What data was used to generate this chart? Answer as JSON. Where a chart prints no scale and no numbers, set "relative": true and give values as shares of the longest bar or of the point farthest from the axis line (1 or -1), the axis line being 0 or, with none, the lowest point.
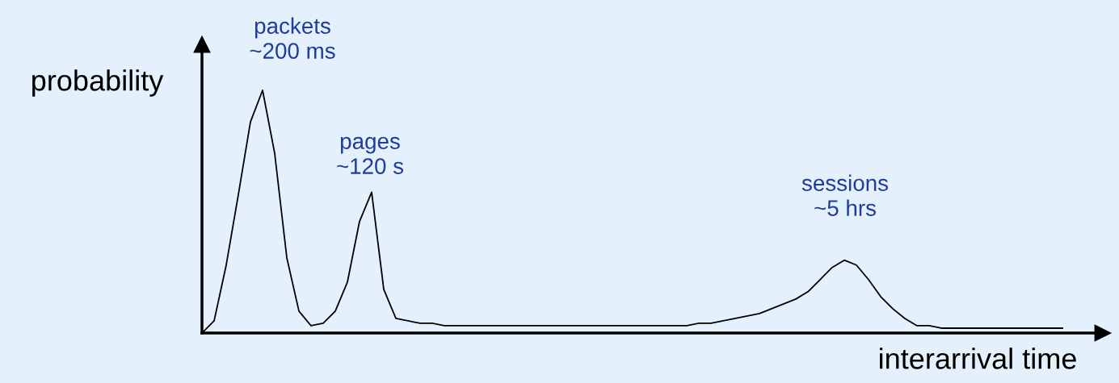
{
  "chart_data": {
    "type": "line",
    "relative": true,
    "xlabel": "interarrival time",
    "ylabel": "probability",
    "annotations": [
      "packets\n~200 ms",
      "pages\n~120 s",
      "sessions\n~5 hrs"
    ],
    "categories": [
      null,
      null,
      null,
      null,
      null,
      null,
      null,
      null,
      null,
      null,
      null,
      null,
      null,
      null,
      null,
      null,
      null,
      null,
      null,
      null,
      null,
      null,
      null,
      null,
      null,
      null,
      null,
      null,
      null,
      null,
      null,
      null,
      null,
      null,
      null,
      null,
      null,
      null,
      null,
      null,
      null,
      null,
      null,
      null,
      null,
      null,
      null,
      null,
      null,
      null,
      null,
      null,
      null,
      null,
      null,
      null,
      null,
      null,
      null,
      null,
      null,
      null,
      null,
      null,
      null,
      null,
      null,
      null,
      null,
      null,
      null,
      null
    ],
    "series": [
      {
        "color": "#000000",
        "values": [
          0,
          0.05,
          0.28,
          0.57,
          0.87,
          1,
          0.74,
          0.31,
          0.09,
          0.03,
          0.04,
          0.09,
          0.21,
          0.46,
          0.58,
          0.18,
          0.06,
          0.05,
          0.04,
          0.04,
          0.03,
          0.03,
          0.03,
          0.03,
          0.03,
          0.03,
          0.03,
          0.03,
          0.03,
          0.03,
          0.03,
          0.03,
          0.03,
          0.03,
          0.03,
          0.03,
          0.03,
          0.03,
          0.03,
          0.03,
          0.03,
          0.04,
          0.04,
          0.05,
          0.06,
          0.07,
          0.08,
          0.1,
          0.12,
          0.14,
          0.17,
          0.22,
          0.27,
          0.3,
          0.28,
          0.22,
          0.15,
          0.1,
          0.06,
          0.03,
          0.03,
          0.02,
          0.02,
          0.02,
          0.02,
          0.02,
          0.02,
          0.02,
          0.02,
          0.02,
          0.02,
          0.02
        ]
      }
    ]
  }
}
